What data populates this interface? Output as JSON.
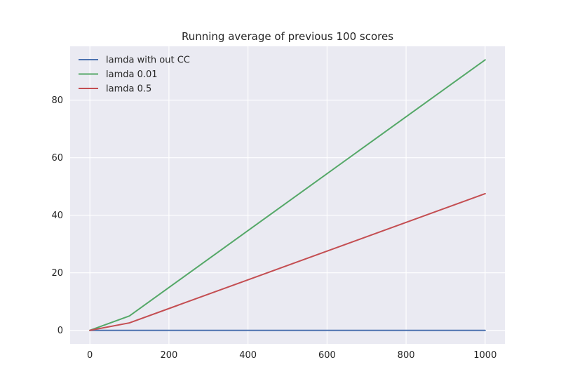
{
  "chart_data": {
    "type": "line",
    "title": "Running average of previous 100 scores",
    "xlabel": "",
    "ylabel": "",
    "xlim": [
      -50,
      1050
    ],
    "ylim": [
      -4.7,
      98.7
    ],
    "xticks": [
      0,
      200,
      400,
      600,
      800,
      1000
    ],
    "yticks": [
      0,
      20,
      40,
      60,
      80
    ],
    "grid": true,
    "legend_position": "top-left",
    "background_color": "#eaeaf2",
    "grid_color": "#ffffff",
    "series": [
      {
        "name": "lamda with out CC",
        "color": "#4c72b0",
        "x": [
          0,
          100,
          1000
        ],
        "y": [
          0,
          0,
          0
        ]
      },
      {
        "name": "lamda 0.01",
        "color": "#55a868",
        "x": [
          0,
          100,
          1000
        ],
        "y": [
          0,
          5,
          94
        ]
      },
      {
        "name": "lamda 0.5",
        "color": "#c44e52",
        "x": [
          0,
          100,
          1000
        ],
        "y": [
          0,
          2.6,
          47.5
        ]
      }
    ]
  }
}
